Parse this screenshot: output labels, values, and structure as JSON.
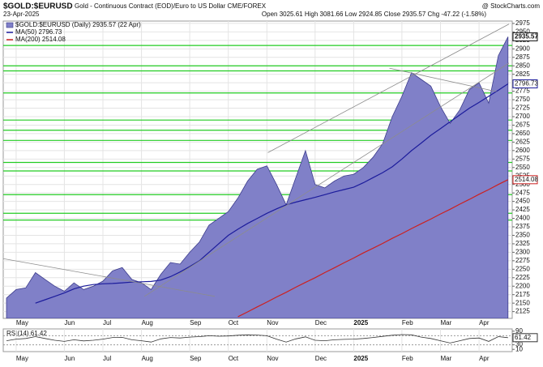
{
  "chart_data": {
    "type": "area",
    "title": "$GOLD:$EURUSD",
    "subtitle": "Gold - Continuous Contract (EOD)/Euro to US Dollar CME/FOREX",
    "date": "23-Apr-2025",
    "ohlc": "Open 3025.61 High 3081.66 Low 2924.85 Close 2935.57 Chg -47.22 (-1.58%)",
    "source": "@ StockCharts.com",
    "categories": [
      null,
      "May",
      null,
      null,
      null,
      null,
      "Jun",
      null,
      null,
      null,
      "Jul",
      null,
      null,
      null,
      "Aug",
      null,
      null,
      null,
      null,
      "Sep",
      null,
      null,
      null,
      "Oct",
      null,
      null,
      null,
      "Nov",
      null,
      null,
      null,
      null,
      "Dec",
      null,
      null,
      null,
      "2025",
      null,
      null,
      null,
      null,
      "Feb",
      null,
      null,
      null,
      "Mar",
      null,
      null,
      null,
      "Apr",
      null,
      null,
      null
    ],
    "series": [
      {
        "name": "$GOLD:$EURUSD (Daily) 2935.57 (22 Apr)",
        "color": "#8080c8",
        "outline": "#3c3c8c",
        "values": [
          2165,
          2190,
          2195,
          2240,
          2220,
          2200,
          2185,
          2210,
          2190,
          2200,
          2215,
          2245,
          2255,
          2220,
          2210,
          2190,
          2235,
          2270,
          2265,
          2300,
          2330,
          2380,
          2400,
          2420,
          2460,
          2510,
          2545,
          2555,
          2500,
          2440,
          2520,
          2600,
          2500,
          2490,
          2510,
          2525,
          2530,
          2550,
          2580,
          2620,
          2700,
          2760,
          2830,
          2810,
          2790,
          2730,
          2680,
          2720,
          2780,
          2800,
          2740,
          2880,
          2935.57
        ]
      },
      {
        "name": "MA(50) 2796.73",
        "color": "#1c1c9c",
        "values": [
          null,
          null,
          null,
          2150,
          2160,
          2170,
          2180,
          2192,
          2200,
          2205,
          2207,
          2208,
          2210,
          2212,
          2213,
          2214,
          2218,
          2228,
          2242,
          2258,
          2275,
          2300,
          2325,
          2350,
          2368,
          2385,
          2400,
          2415,
          2428,
          2440,
          2448,
          2455,
          2462,
          2470,
          2478,
          2485,
          2492,
          2505,
          2520,
          2535,
          2552,
          2575,
          2600,
          2622,
          2645,
          2665,
          2685,
          2705,
          2725,
          2742,
          2760,
          2778,
          2796.73
        ]
      },
      {
        "name": "MA(200) 2514.08",
        "color": "#cc2020",
        "values": [
          null,
          null,
          null,
          null,
          null,
          null,
          null,
          null,
          null,
          null,
          null,
          null,
          null,
          null,
          null,
          null,
          null,
          null,
          null,
          null,
          null,
          null,
          null,
          null,
          2110,
          2124,
          2139,
          2153,
          2168,
          2182,
          2197,
          2211,
          2225,
          2240,
          2254,
          2269,
          2283,
          2298,
          2312,
          2326,
          2341,
          2355,
          2370,
          2384,
          2398,
          2413,
          2427,
          2442,
          2456,
          2471,
          2485,
          2500,
          2514.08
        ]
      }
    ],
    "ylim": [
      2105,
      2982
    ],
    "yticks": [
      2125,
      2150,
      2175,
      2200,
      2225,
      2250,
      2275,
      2300,
      2325,
      2350,
      2375,
      2400,
      2425,
      2450,
      2475,
      2500,
      2525,
      2550,
      2575,
      2600,
      2625,
      2650,
      2675,
      2700,
      2725,
      2750,
      2775,
      2800,
      2825,
      2850,
      2875,
      2900,
      2925,
      2950,
      2975
    ],
    "grid": true,
    "horizontal_lines": {
      "color": "#22cc22",
      "values": [
        2910,
        2850,
        2835,
        2770,
        2690,
        2660,
        2630,
        2565,
        2540,
        2470,
        2415,
        2395
      ]
    },
    "trend_lines": {
      "color": "#8c8c8c",
      "lines": [
        {
          "x": [
            -0.67,
            21.6
          ],
          "y": [
            2283,
            2170
          ]
        },
        {
          "x": [
            27.1,
            52.1
          ],
          "y": [
            2594,
            2973
          ]
        },
        {
          "x": [
            14.3,
            52.1
          ],
          "y": [
            2170,
            2858
          ]
        },
        {
          "x": [
            39.7,
            50.8
          ],
          "y": [
            2843,
            2774
          ]
        }
      ]
    },
    "rsi": {
      "title": "RSI(14) 61.42",
      "color": "#333333",
      "values": [
        48,
        55,
        58,
        66,
        58,
        50,
        45,
        52,
        47,
        50,
        55,
        62,
        63,
        52,
        48,
        42,
        56,
        62,
        60,
        64,
        66,
        70,
        68,
        69,
        72,
        74,
        73,
        70,
        55,
        42,
        56,
        65,
        50,
        48,
        52,
        54,
        55,
        58,
        62,
        67,
        72,
        75,
        74,
        64,
        58,
        48,
        38,
        48,
        58,
        60,
        45,
        66,
        61.42
      ],
      "ylim": [
        0,
        100
      ],
      "yticks": [
        10,
        30,
        90
      ],
      "levels": [
        30,
        70
      ]
    }
  }
}
